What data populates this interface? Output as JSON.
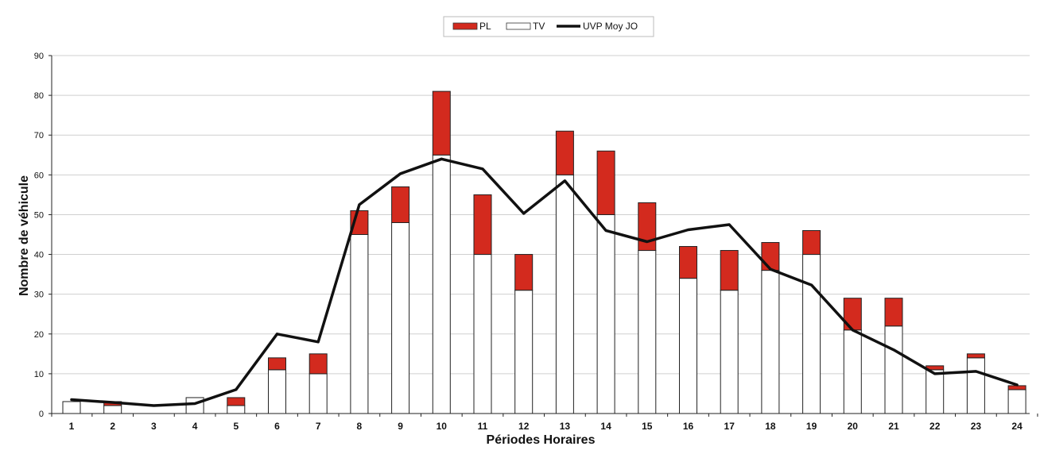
{
  "chart_data": {
    "type": "bar",
    "stacked": true,
    "categories": [
      "1",
      "2",
      "3",
      "4",
      "5",
      "6",
      "7",
      "8",
      "9",
      "10",
      "11",
      "12",
      "13",
      "14",
      "15",
      "16",
      "17",
      "18",
      "19",
      "20",
      "21",
      "22",
      "23",
      "24"
    ],
    "series": [
      {
        "name": "TV",
        "kind": "bar",
        "color": "#ffffff",
        "values": [
          3,
          2,
          0,
          4,
          2,
          11,
          10,
          45,
          48,
          65,
          40,
          31,
          60,
          50,
          41,
          34,
          31,
          36,
          40,
          21,
          22,
          11,
          14,
          6
        ]
      },
      {
        "name": "PL",
        "kind": "bar",
        "color": "#d32a1e",
        "values": [
          0,
          1,
          0,
          0,
          2,
          3,
          5,
          6,
          9,
          16,
          15,
          9,
          11,
          16,
          12,
          8,
          10,
          7,
          6,
          8,
          7,
          1,
          1,
          1
        ]
      },
      {
        "name": "UVP Moy JO",
        "kind": "line",
        "color": "#111111",
        "values": [
          3.5,
          2.8,
          2,
          2.5,
          6,
          20,
          18,
          52.5,
          60.3,
          64,
          61.5,
          50.3,
          58.5,
          46,
          43.2,
          46.2,
          47.5,
          36.3,
          32.3,
          21,
          16,
          10,
          10.6,
          7.2
        ]
      }
    ],
    "xlabel": "Périodes Horaires",
    "ylabel": "Nombre de véhicule",
    "ylim": [
      0,
      90
    ],
    "yticks": [
      0,
      10,
      20,
      30,
      40,
      50,
      60,
      70,
      80,
      90
    ],
    "grid": true,
    "legend": "top-center",
    "legend_order": [
      "PL",
      "TV",
      "UVP Moy JO"
    ]
  }
}
